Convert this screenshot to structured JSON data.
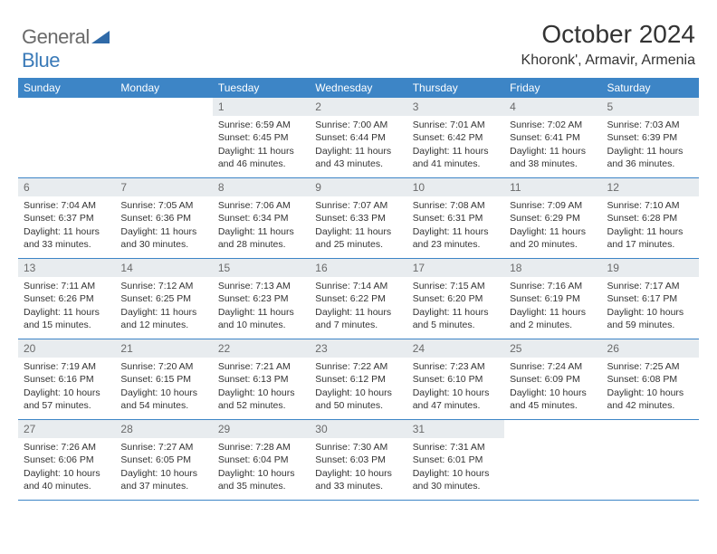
{
  "brand": {
    "text1": "General",
    "text2": "Blue",
    "shape_color": "#2f6aa8"
  },
  "title": {
    "month_year": "October 2024",
    "location": "Khoronk', Armavir, Armenia",
    "title_fontsize": 28,
    "location_fontsize": 16
  },
  "style": {
    "header_bg": "#3d85c6",
    "header_text_color": "#ffffff",
    "daynum_bg": "#e8ecef",
    "daynum_text_color": "#6a6a6a",
    "row_border_color": "#3d85c6",
    "body_text_color": "#333333",
    "cell_fontsize": 10.5,
    "header_fontsize": 12
  },
  "weekdays": [
    "Sunday",
    "Monday",
    "Tuesday",
    "Wednesday",
    "Thursday",
    "Friday",
    "Saturday"
  ],
  "weeks": [
    [
      {
        "day": "",
        "sunrise": "",
        "sunset": "",
        "daylight": ""
      },
      {
        "day": "",
        "sunrise": "",
        "sunset": "",
        "daylight": ""
      },
      {
        "day": "1",
        "sunrise": "Sunrise: 6:59 AM",
        "sunset": "Sunset: 6:45 PM",
        "daylight": "Daylight: 11 hours and 46 minutes."
      },
      {
        "day": "2",
        "sunrise": "Sunrise: 7:00 AM",
        "sunset": "Sunset: 6:44 PM",
        "daylight": "Daylight: 11 hours and 43 minutes."
      },
      {
        "day": "3",
        "sunrise": "Sunrise: 7:01 AM",
        "sunset": "Sunset: 6:42 PM",
        "daylight": "Daylight: 11 hours and 41 minutes."
      },
      {
        "day": "4",
        "sunrise": "Sunrise: 7:02 AM",
        "sunset": "Sunset: 6:41 PM",
        "daylight": "Daylight: 11 hours and 38 minutes."
      },
      {
        "day": "5",
        "sunrise": "Sunrise: 7:03 AM",
        "sunset": "Sunset: 6:39 PM",
        "daylight": "Daylight: 11 hours and 36 minutes."
      }
    ],
    [
      {
        "day": "6",
        "sunrise": "Sunrise: 7:04 AM",
        "sunset": "Sunset: 6:37 PM",
        "daylight": "Daylight: 11 hours and 33 minutes."
      },
      {
        "day": "7",
        "sunrise": "Sunrise: 7:05 AM",
        "sunset": "Sunset: 6:36 PM",
        "daylight": "Daylight: 11 hours and 30 minutes."
      },
      {
        "day": "8",
        "sunrise": "Sunrise: 7:06 AM",
        "sunset": "Sunset: 6:34 PM",
        "daylight": "Daylight: 11 hours and 28 minutes."
      },
      {
        "day": "9",
        "sunrise": "Sunrise: 7:07 AM",
        "sunset": "Sunset: 6:33 PM",
        "daylight": "Daylight: 11 hours and 25 minutes."
      },
      {
        "day": "10",
        "sunrise": "Sunrise: 7:08 AM",
        "sunset": "Sunset: 6:31 PM",
        "daylight": "Daylight: 11 hours and 23 minutes."
      },
      {
        "day": "11",
        "sunrise": "Sunrise: 7:09 AM",
        "sunset": "Sunset: 6:29 PM",
        "daylight": "Daylight: 11 hours and 20 minutes."
      },
      {
        "day": "12",
        "sunrise": "Sunrise: 7:10 AM",
        "sunset": "Sunset: 6:28 PM",
        "daylight": "Daylight: 11 hours and 17 minutes."
      }
    ],
    [
      {
        "day": "13",
        "sunrise": "Sunrise: 7:11 AM",
        "sunset": "Sunset: 6:26 PM",
        "daylight": "Daylight: 11 hours and 15 minutes."
      },
      {
        "day": "14",
        "sunrise": "Sunrise: 7:12 AM",
        "sunset": "Sunset: 6:25 PM",
        "daylight": "Daylight: 11 hours and 12 minutes."
      },
      {
        "day": "15",
        "sunrise": "Sunrise: 7:13 AM",
        "sunset": "Sunset: 6:23 PM",
        "daylight": "Daylight: 11 hours and 10 minutes."
      },
      {
        "day": "16",
        "sunrise": "Sunrise: 7:14 AM",
        "sunset": "Sunset: 6:22 PM",
        "daylight": "Daylight: 11 hours and 7 minutes."
      },
      {
        "day": "17",
        "sunrise": "Sunrise: 7:15 AM",
        "sunset": "Sunset: 6:20 PM",
        "daylight": "Daylight: 11 hours and 5 minutes."
      },
      {
        "day": "18",
        "sunrise": "Sunrise: 7:16 AM",
        "sunset": "Sunset: 6:19 PM",
        "daylight": "Daylight: 11 hours and 2 minutes."
      },
      {
        "day": "19",
        "sunrise": "Sunrise: 7:17 AM",
        "sunset": "Sunset: 6:17 PM",
        "daylight": "Daylight: 10 hours and 59 minutes."
      }
    ],
    [
      {
        "day": "20",
        "sunrise": "Sunrise: 7:19 AM",
        "sunset": "Sunset: 6:16 PM",
        "daylight": "Daylight: 10 hours and 57 minutes."
      },
      {
        "day": "21",
        "sunrise": "Sunrise: 7:20 AM",
        "sunset": "Sunset: 6:15 PM",
        "daylight": "Daylight: 10 hours and 54 minutes."
      },
      {
        "day": "22",
        "sunrise": "Sunrise: 7:21 AM",
        "sunset": "Sunset: 6:13 PM",
        "daylight": "Daylight: 10 hours and 52 minutes."
      },
      {
        "day": "23",
        "sunrise": "Sunrise: 7:22 AM",
        "sunset": "Sunset: 6:12 PM",
        "daylight": "Daylight: 10 hours and 50 minutes."
      },
      {
        "day": "24",
        "sunrise": "Sunrise: 7:23 AM",
        "sunset": "Sunset: 6:10 PM",
        "daylight": "Daylight: 10 hours and 47 minutes."
      },
      {
        "day": "25",
        "sunrise": "Sunrise: 7:24 AM",
        "sunset": "Sunset: 6:09 PM",
        "daylight": "Daylight: 10 hours and 45 minutes."
      },
      {
        "day": "26",
        "sunrise": "Sunrise: 7:25 AM",
        "sunset": "Sunset: 6:08 PM",
        "daylight": "Daylight: 10 hours and 42 minutes."
      }
    ],
    [
      {
        "day": "27",
        "sunrise": "Sunrise: 7:26 AM",
        "sunset": "Sunset: 6:06 PM",
        "daylight": "Daylight: 10 hours and 40 minutes."
      },
      {
        "day": "28",
        "sunrise": "Sunrise: 7:27 AM",
        "sunset": "Sunset: 6:05 PM",
        "daylight": "Daylight: 10 hours and 37 minutes."
      },
      {
        "day": "29",
        "sunrise": "Sunrise: 7:28 AM",
        "sunset": "Sunset: 6:04 PM",
        "daylight": "Daylight: 10 hours and 35 minutes."
      },
      {
        "day": "30",
        "sunrise": "Sunrise: 7:30 AM",
        "sunset": "Sunset: 6:03 PM",
        "daylight": "Daylight: 10 hours and 33 minutes."
      },
      {
        "day": "31",
        "sunrise": "Sunrise: 7:31 AM",
        "sunset": "Sunset: 6:01 PM",
        "daylight": "Daylight: 10 hours and 30 minutes."
      },
      {
        "day": "",
        "sunrise": "",
        "sunset": "",
        "daylight": ""
      },
      {
        "day": "",
        "sunrise": "",
        "sunset": "",
        "daylight": ""
      }
    ]
  ]
}
